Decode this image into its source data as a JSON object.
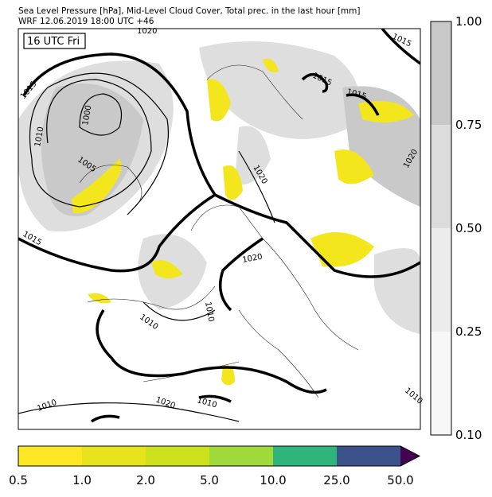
{
  "header": {
    "line1": "Sea Level Pressure [hPa], Mid-Level Cloud Cover, Total prec. in the last hour [mm]",
    "line2": "WRF 12.06.2019 18:00 UTC +46"
  },
  "map": {
    "time_label": "16 UTC Fri",
    "isobar_labels": [
      "1020",
      "1015",
      "1015",
      "1000",
      "1010",
      "1005",
      "1015",
      "1015",
      "1015",
      "1020",
      "1020",
      "1020",
      "1010",
      "1010",
      "1010",
      "1020",
      "1010",
      "1010"
    ]
  },
  "cloud_colorbar": {
    "ticks": [
      "1.00",
      "0.75",
      "0.50",
      "0.25",
      "0.10"
    ]
  },
  "precip_colorbar": {
    "ticks": [
      "0.5",
      "1.0",
      "2.0",
      "5.0",
      "10.0",
      "25.0",
      "50.0"
    ]
  }
}
